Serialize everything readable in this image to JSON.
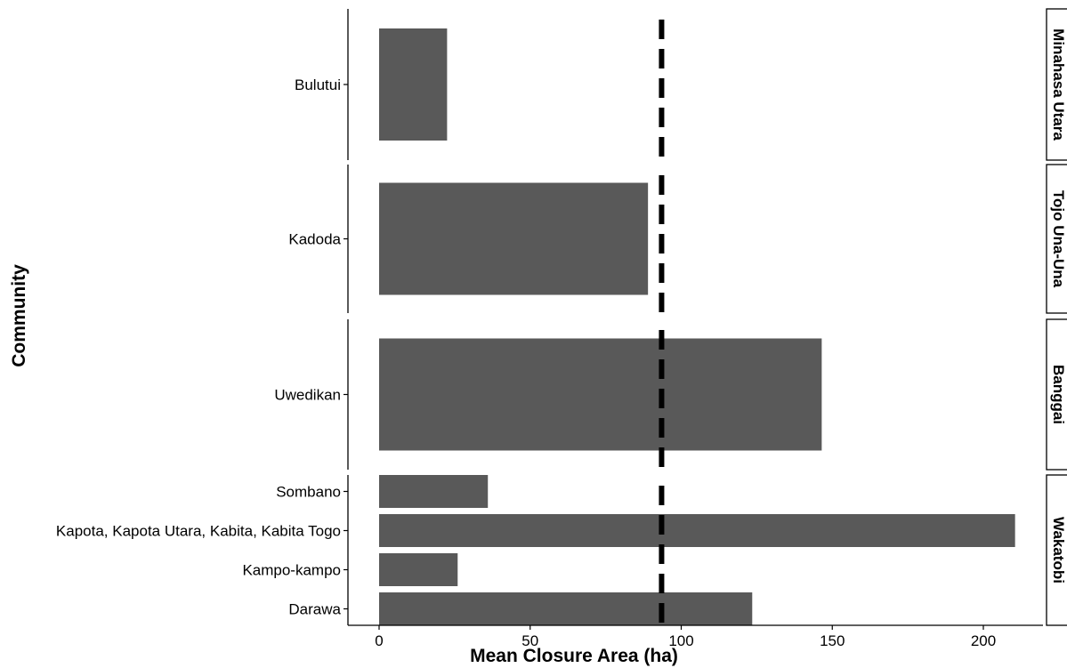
{
  "chart_data": {
    "type": "bar",
    "orientation": "horizontal",
    "xlabel": "Mean Closure Area (ha)",
    "ylabel": "Community",
    "xlim": [
      -10,
      222
    ],
    "xticks": [
      0,
      50,
      100,
      150,
      200
    ],
    "reference_line": {
      "value": 93.5,
      "style": "dashed",
      "color": "#000000"
    },
    "bar_color": "#595959",
    "facets": [
      {
        "name": "Minahasa Utara",
        "bars": [
          {
            "community": "Bulutui",
            "value": 22.5
          }
        ]
      },
      {
        "name": "Tojo Una-Una",
        "bars": [
          {
            "community": "Kadoda",
            "value": 89
          }
        ]
      },
      {
        "name": "Banggai",
        "bars": [
          {
            "community": "Uwedikan",
            "value": 146.5
          }
        ]
      },
      {
        "name": "Wakatobi",
        "bars": [
          {
            "community": "Sombano",
            "value": 36
          },
          {
            "community": "Kapota, Kapota Utara, Kabita, Kabita Togo",
            "value": 210.5
          },
          {
            "community": "Kampo-kampo",
            "value": 26
          },
          {
            "community": "Darawa",
            "value": 123.5
          }
        ]
      }
    ]
  }
}
